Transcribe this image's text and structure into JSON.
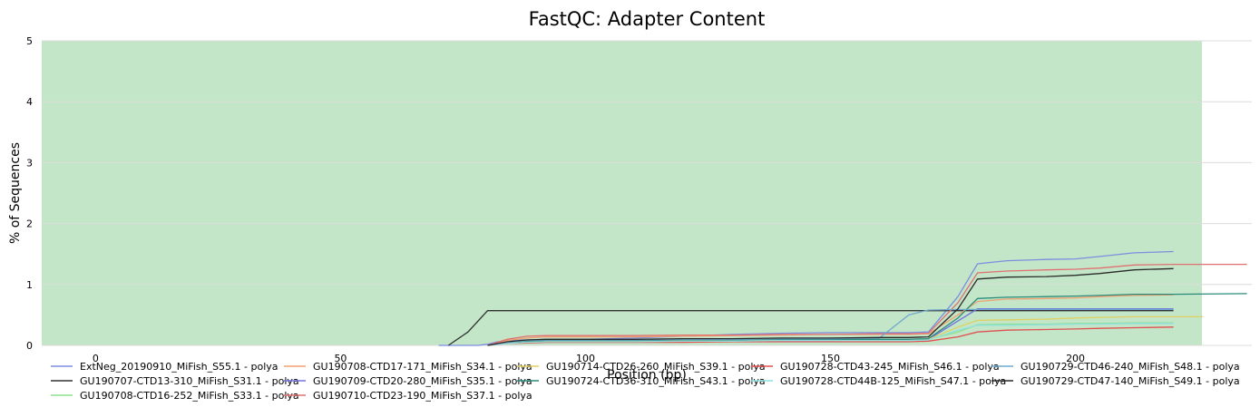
{
  "chart_data": {
    "type": "line",
    "title": "FastQC: Adapter Content",
    "xlabel": "Position (bp)",
    "ylabel": "% of Sequences",
    "xlim": [
      -11,
      236
    ],
    "ylim": [
      0,
      5
    ],
    "x_ticks": [
      "0",
      "50",
      "100",
      "150",
      "200"
    ],
    "x_tick_values": [
      0,
      50,
      100,
      150,
      200
    ],
    "y_ticks": [
      "0",
      "1",
      "2",
      "3",
      "4",
      "5"
    ],
    "y_tick_values": [
      0,
      1,
      2,
      3,
      4,
      5
    ],
    "shaded_band": {
      "y_from": 0,
      "y_to": 5,
      "color": "#c3e6c8"
    },
    "grid": true,
    "legend_position": "bottom",
    "series": [
      {
        "name": "ExtNeg_20190910_MiFish_S55.1 - polya",
        "color": "#7b8fe0",
        "x": [
          70,
          72,
          74,
          76,
          78,
          80,
          82,
          84,
          88,
          92,
          96,
          100,
          110,
          120,
          130,
          140,
          150,
          160,
          166,
          170,
          176,
          180,
          186,
          194,
          200,
          205,
          212,
          220
        ],
        "y": [
          0,
          0,
          0,
          0,
          0,
          0.02,
          0.06,
          0.08,
          0.09,
          0.1,
          0.1,
          0.1,
          0.12,
          0.15,
          0.18,
          0.2,
          0.21,
          0.21,
          0.21,
          0.22,
          0.8,
          1.34,
          1.39,
          1.41,
          1.42,
          1.46,
          1.52,
          1.54
        ]
      },
      {
        "name": "GU190707-CTD13-310_MiFish_S31.1 - polya",
        "color": "#333333",
        "x": [
          72,
          76,
          80,
          82,
          84,
          88,
          92,
          96,
          100,
          110,
          120,
          130,
          140,
          150,
          160,
          166,
          170,
          176,
          180,
          186,
          194,
          200,
          205,
          212,
          220
        ],
        "y": [
          0,
          0.22,
          0.57,
          0.57,
          0.57,
          0.57,
          0.57,
          0.57,
          0.57,
          0.57,
          0.57,
          0.57,
          0.57,
          0.57,
          0.57,
          0.57,
          0.57,
          0.57,
          0.57,
          0.57,
          0.57,
          0.57,
          0.57,
          0.57,
          0.57
        ]
      },
      {
        "name": "GU190708-CTD16-252_MiFish_S33.1 - polya",
        "color": "#8fe08f",
        "x": [
          80,
          84,
          88,
          92,
          100,
          110,
          120,
          130,
          140,
          150,
          160,
          166,
          170,
          176,
          180,
          186,
          194,
          200,
          205,
          212,
          220
        ],
        "y": [
          0,
          0.04,
          0.06,
          0.07,
          0.07,
          0.07,
          0.08,
          0.08,
          0.09,
          0.09,
          0.09,
          0.09,
          0.1,
          0.22,
          0.34,
          0.35,
          0.35,
          0.36,
          0.36,
          0.37,
          0.37
        ]
      },
      {
        "name": "GU190708-CTD17-171_MiFish_S34.1 - polya",
        "color": "#f0a070",
        "x": [
          80,
          84,
          88,
          92,
          100,
          110,
          120,
          130,
          140,
          150,
          160,
          166,
          170,
          176,
          180,
          186,
          194,
          200,
          205,
          212,
          220
        ],
        "y": [
          0,
          0.08,
          0.12,
          0.14,
          0.14,
          0.14,
          0.15,
          0.16,
          0.17,
          0.18,
          0.18,
          0.18,
          0.19,
          0.5,
          0.72,
          0.76,
          0.77,
          0.78,
          0.8,
          0.82,
          0.83
        ]
      },
      {
        "name": "GU190709-CTD20-280_MiFish_S35.1 - polya",
        "color": "#7070e0",
        "x": [
          80,
          84,
          88,
          92,
          100,
          110,
          120,
          130,
          140,
          150,
          160,
          166,
          170,
          176,
          180,
          186,
          194,
          200,
          205,
          212,
          220
        ],
        "y": [
          0,
          0.04,
          0.06,
          0.06,
          0.06,
          0.06,
          0.07,
          0.07,
          0.08,
          0.08,
          0.09,
          0.09,
          0.1,
          0.4,
          0.6,
          0.6,
          0.6,
          0.6,
          0.6,
          0.6,
          0.6
        ]
      },
      {
        "name": "GU190710-CTD23-190_MiFish_S37.1 - polya",
        "color": "#e07070",
        "x": [
          80,
          84,
          88,
          92,
          100,
          110,
          120,
          130,
          140,
          150,
          160,
          166,
          170,
          176,
          180,
          186,
          194,
          200,
          205,
          212,
          220,
          235
        ],
        "y": [
          0,
          0.1,
          0.15,
          0.16,
          0.16,
          0.16,
          0.17,
          0.17,
          0.18,
          0.18,
          0.19,
          0.19,
          0.2,
          0.7,
          1.19,
          1.22,
          1.24,
          1.25,
          1.27,
          1.32,
          1.33,
          1.33
        ]
      },
      {
        "name": "GU190714-CTD26-260_MiFish_S39.1 - polya",
        "color": "#e0d060",
        "x": [
          80,
          84,
          88,
          92,
          100,
          110,
          120,
          130,
          140,
          150,
          160,
          166,
          170,
          176,
          180,
          186,
          194,
          200,
          205,
          212,
          220,
          226
        ],
        "y": [
          0,
          0.04,
          0.06,
          0.07,
          0.07,
          0.07,
          0.08,
          0.08,
          0.09,
          0.09,
          0.09,
          0.09,
          0.1,
          0.3,
          0.41,
          0.42,
          0.43,
          0.45,
          0.46,
          0.47,
          0.47,
          0.47
        ]
      },
      {
        "name": "GU190724-CTD36-310_MiFish_S43.1 - polya",
        "color": "#2a8a7a",
        "x": [
          80,
          84,
          88,
          92,
          100,
          110,
          120,
          130,
          140,
          150,
          160,
          166,
          170,
          176,
          180,
          186,
          194,
          200,
          205,
          212,
          220,
          235
        ],
        "y": [
          0,
          0.05,
          0.07,
          0.08,
          0.08,
          0.08,
          0.09,
          0.09,
          0.1,
          0.1,
          0.1,
          0.1,
          0.11,
          0.45,
          0.77,
          0.79,
          0.8,
          0.81,
          0.82,
          0.84,
          0.84,
          0.85
        ]
      },
      {
        "name": "GU190728-CTD43-245_MiFish_S46.1 - polya",
        "color": "#e05050",
        "x": [
          80,
          84,
          88,
          92,
          100,
          110,
          120,
          130,
          140,
          150,
          160,
          166,
          170,
          176,
          180,
          186,
          194,
          200,
          205,
          212,
          220
        ],
        "y": [
          0,
          0.03,
          0.04,
          0.05,
          0.05,
          0.05,
          0.05,
          0.06,
          0.06,
          0.06,
          0.06,
          0.06,
          0.07,
          0.14,
          0.22,
          0.25,
          0.26,
          0.27,
          0.28,
          0.29,
          0.3
        ]
      },
      {
        "name": "GU190728-CTD44B-125_MiFish_S47.1 - polya",
        "color": "#90e0e0",
        "x": [
          80,
          84,
          88,
          92,
          100,
          110,
          120,
          130,
          140,
          150,
          160,
          166,
          170,
          176,
          180,
          186,
          194,
          200,
          205,
          212,
          220
        ],
        "y": [
          0,
          0.03,
          0.05,
          0.06,
          0.06,
          0.06,
          0.07,
          0.07,
          0.08,
          0.08,
          0.08,
          0.08,
          0.09,
          0.25,
          0.33,
          0.33,
          0.34,
          0.35,
          0.35,
          0.36,
          0.36
        ]
      },
      {
        "name": "GU190729-CTD46-240_MiFish_S48.1 - polya",
        "color": "#6fa8cf",
        "x": [
          80,
          84,
          88,
          92,
          100,
          110,
          120,
          130,
          140,
          150,
          160,
          166,
          170,
          176,
          180,
          186,
          194,
          200,
          205,
          212,
          220
        ],
        "y": [
          0,
          0.05,
          0.08,
          0.09,
          0.09,
          0.09,
          0.1,
          0.1,
          0.11,
          0.11,
          0.12,
          0.5,
          0.58,
          0.59,
          0.59,
          0.59,
          0.59,
          0.59,
          0.59,
          0.59,
          0.59
        ]
      },
      {
        "name": "GU190729-CTD47-140_MiFish_S49.1 - polya",
        "color": "#2a2a2a",
        "x": [
          80,
          84,
          88,
          92,
          100,
          110,
          120,
          130,
          140,
          150,
          160,
          166,
          170,
          176,
          180,
          186,
          194,
          200,
          205,
          212,
          220
        ],
        "y": [
          0,
          0.06,
          0.09,
          0.1,
          0.1,
          0.1,
          0.11,
          0.11,
          0.12,
          0.12,
          0.13,
          0.13,
          0.14,
          0.6,
          1.09,
          1.12,
          1.13,
          1.15,
          1.18,
          1.24,
          1.26
        ]
      }
    ]
  }
}
